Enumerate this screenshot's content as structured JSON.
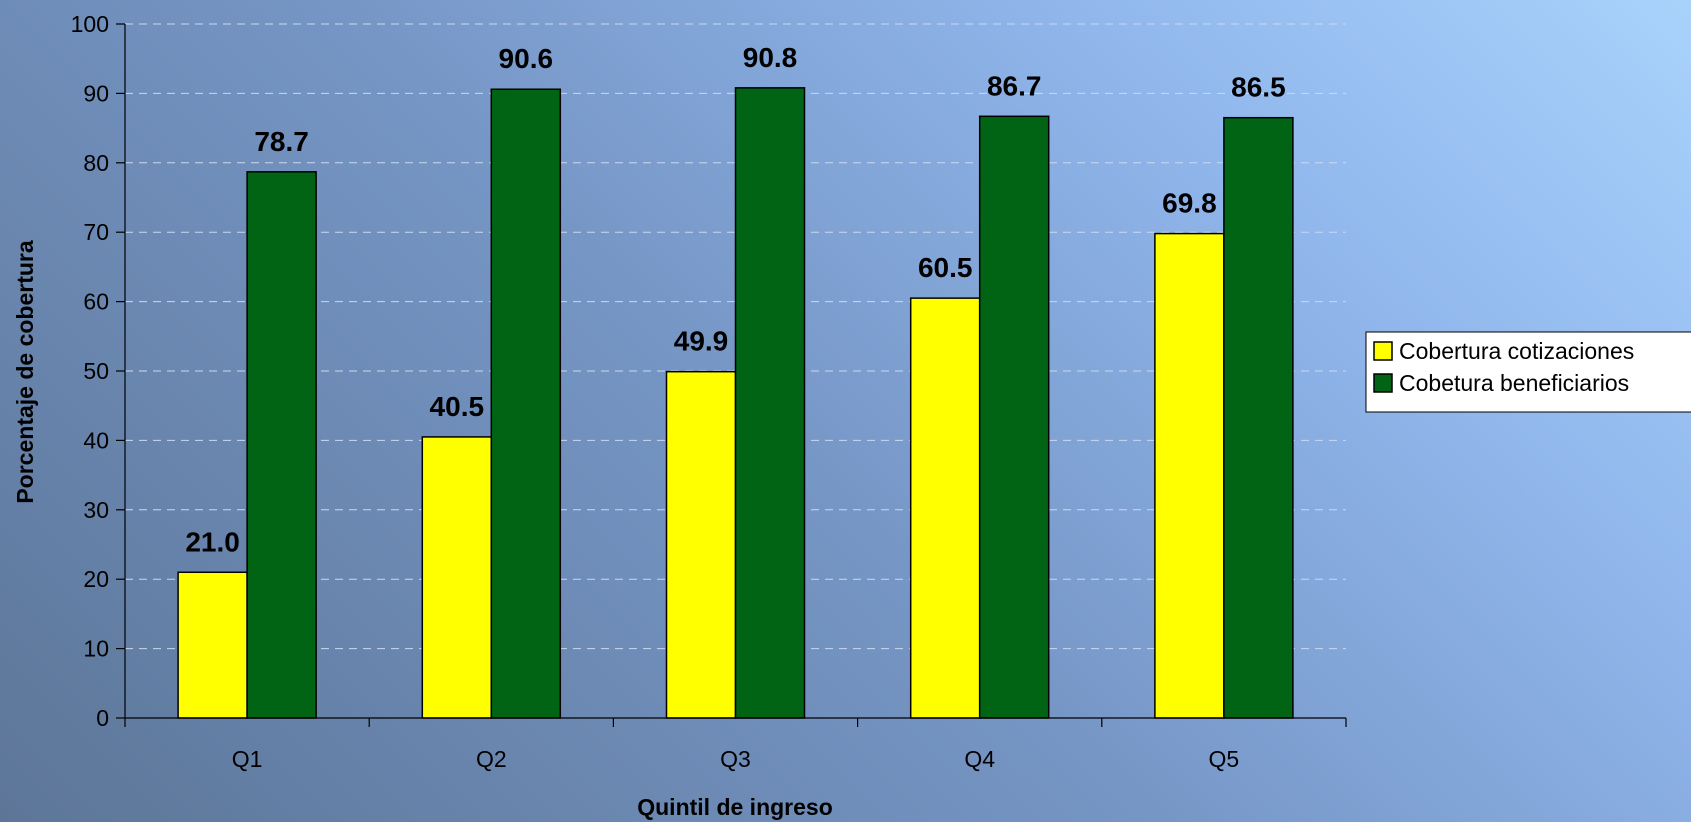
{
  "chart_data": {
    "type": "bar",
    "title": "",
    "xlabel": "Quintil de ingreso",
    "ylabel": "Porcentaje de cobertura",
    "categories": [
      "Q1",
      "Q2",
      "Q3",
      "Q4",
      "Q5"
    ],
    "series": [
      {
        "name": "Cobertura cotizaciones",
        "color": "#ffff00",
        "values": [
          21.0,
          40.5,
          49.9,
          60.5,
          69.8
        ],
        "labels": [
          "21.0",
          "40.5",
          "49.9",
          "60.5",
          "69.8"
        ]
      },
      {
        "name": "Cobetura beneficiarios",
        "color": "#006414",
        "values": [
          78.7,
          90.6,
          90.8,
          86.7,
          86.5
        ],
        "labels": [
          "78.7",
          "90.6",
          "90.8",
          "86.7",
          "86.5"
        ]
      }
    ],
    "ylim": [
      0,
      100
    ],
    "yticks": [
      "0",
      "10",
      "20",
      "30",
      "40",
      "50",
      "60",
      "70",
      "80",
      "90",
      "100"
    ],
    "grid": true,
    "legend_position": "right"
  }
}
